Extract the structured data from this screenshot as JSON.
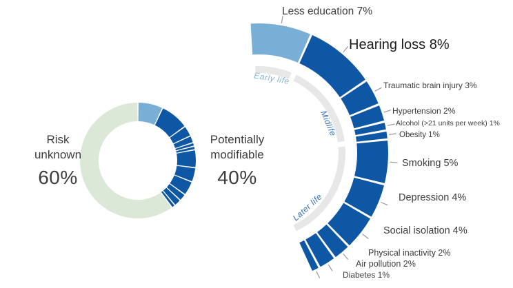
{
  "colors": {
    "light_blue": "#79AFD7",
    "dark_blue": "#0D57A4",
    "pale_green": "#DBE8D7",
    "track_gray": "#E7E7E7",
    "stage_early": "#82B5DB",
    "stage_late": "#2F6EB6",
    "text": "#3D3D3D",
    "text_emph": "#1A1A1A",
    "tick": "#999999"
  },
  "left_donut": {
    "unknown": {
      "line1": "Risk",
      "line2": "unknown",
      "pct": "60%"
    },
    "modifiable": {
      "line1": "Potentially",
      "line2": "modifiable",
      "pct": "40%"
    }
  },
  "chart_data": {
    "type": "pie",
    "legend_position": "none",
    "donut": {
      "segments": [
        {
          "label": "Risk unknown",
          "pct": 60
        },
        {
          "label": "Potentially modifiable",
          "pct": 40
        }
      ]
    },
    "stages": [
      {
        "name": "Early life",
        "factors": [
          {
            "label": "Less education",
            "pct": 7
          }
        ]
      },
      {
        "name": "Midlife",
        "factors": [
          {
            "label": "Hearing loss",
            "pct": 8
          },
          {
            "label": "Traumatic brain injury",
            "pct": 3
          },
          {
            "label": "Hypertension",
            "pct": 2
          },
          {
            "label": "Alcohol (>21 units per week)",
            "pct": 1
          },
          {
            "label": "Obesity",
            "pct": 1
          }
        ]
      },
      {
        "name": "Later life",
        "factors": [
          {
            "label": "Smoking",
            "pct": 5
          },
          {
            "label": "Depression",
            "pct": 4
          },
          {
            "label": "Social isolation",
            "pct": 4
          },
          {
            "label": "Physical inactivity",
            "pct": 2
          },
          {
            "label": "Air pollution",
            "pct": 2
          },
          {
            "label": "Diabetes",
            "pct": 1
          }
        ]
      }
    ]
  }
}
